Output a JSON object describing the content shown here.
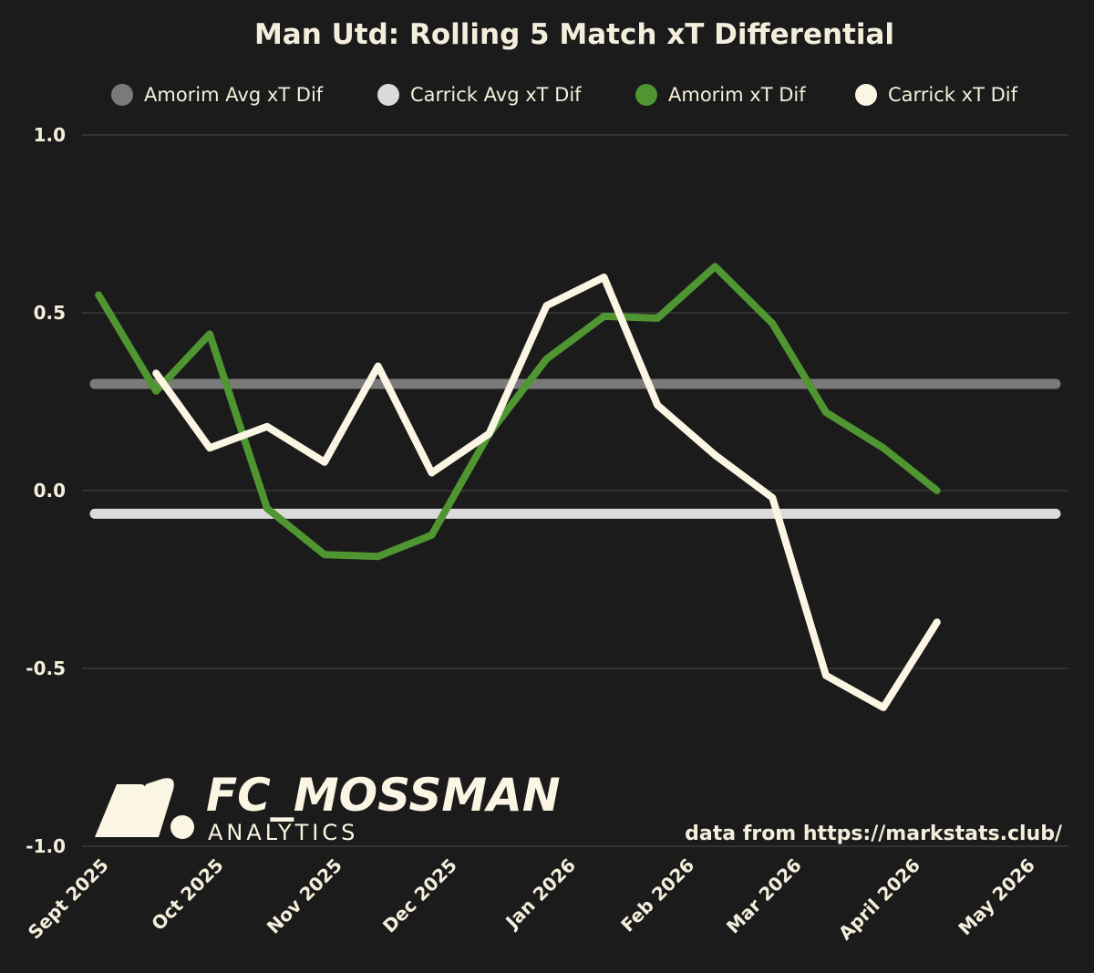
{
  "chart_data": {
    "type": "line",
    "title": "Man Utd: Rolling 5 Match xT Differential",
    "xlabel": "",
    "ylabel": "",
    "ylim": [
      -1.0,
      1.0
    ],
    "yticks": [
      "1.0",
      "0.5",
      "0.0",
      "-0.5",
      "-1.0"
    ],
    "ytick_values": [
      1.0,
      0.5,
      0.0,
      -0.5,
      -1.0
    ],
    "grid": true,
    "legend_position": "top",
    "x_range": [
      "2025-08-31",
      "2026-05-09"
    ],
    "xticks": [
      {
        "label": "Sept 2025",
        "date": "2025-09-01"
      },
      {
        "label": "Oct 2025",
        "date": "2025-10-01"
      },
      {
        "label": "Nov 2025",
        "date": "2025-11-01"
      },
      {
        "label": "Dec 2025",
        "date": "2025-12-01"
      },
      {
        "label": "Jan 2026",
        "date": "2026-01-01"
      },
      {
        "label": "Feb 2026",
        "date": "2026-02-01"
      },
      {
        "label": "Mar 2026",
        "date": "2026-03-01"
      },
      {
        "label": "April 2026",
        "date": "2026-04-01"
      },
      {
        "label": "May 2026",
        "date": "2026-05-01"
      }
    ],
    "series": [
      {
        "name": "Amorim Avg xT Dif",
        "kind": "hline",
        "value": 0.3,
        "color": "#7a7a7a",
        "x_start": "2025-08-31",
        "x_end": "2026-05-09"
      },
      {
        "name": "Carrick Avg xT Dif",
        "kind": "hline",
        "value": -0.065,
        "color": "#dadada",
        "x_start": "2025-08-31",
        "x_end": "2026-05-09"
      },
      {
        "name": "Amorim xT Dif",
        "kind": "line",
        "color": "#4f9531",
        "points": [
          {
            "x": "2025-09-01",
            "y": 0.55
          },
          {
            "x": "2025-09-16",
            "y": 0.28
          },
          {
            "x": "2025-09-30",
            "y": 0.44
          },
          {
            "x": "2025-10-15",
            "y": -0.05
          },
          {
            "x": "2025-10-30",
            "y": -0.18
          },
          {
            "x": "2025-11-13",
            "y": -0.185
          },
          {
            "x": "2025-11-27",
            "y": -0.125
          },
          {
            "x": "2025-12-12",
            "y": 0.16
          },
          {
            "x": "2025-12-27",
            "y": 0.37
          },
          {
            "x": "2026-01-11",
            "y": 0.49
          },
          {
            "x": "2026-01-25",
            "y": 0.485
          },
          {
            "x": "2026-02-09",
            "y": 0.63
          },
          {
            "x": "2026-02-24",
            "y": 0.47
          },
          {
            "x": "2026-03-10",
            "y": 0.22
          },
          {
            "x": "2026-03-25",
            "y": 0.12
          },
          {
            "x": "2026-04-08",
            "y": 0.0
          }
        ]
      },
      {
        "name": "Carrick xT Dif",
        "kind": "line",
        "color": "#fbf6e3",
        "points": [
          {
            "x": "2025-09-16",
            "y": 0.33
          },
          {
            "x": "2025-09-30",
            "y": 0.12
          },
          {
            "x": "2025-10-15",
            "y": 0.18
          },
          {
            "x": "2025-10-30",
            "y": 0.08
          },
          {
            "x": "2025-11-13",
            "y": 0.35
          },
          {
            "x": "2025-11-27",
            "y": 0.05
          },
          {
            "x": "2025-12-12",
            "y": 0.16
          },
          {
            "x": "2025-12-27",
            "y": 0.52
          },
          {
            "x": "2026-01-11",
            "y": 0.6
          },
          {
            "x": "2026-01-25",
            "y": 0.24
          },
          {
            "x": "2026-02-09",
            "y": 0.1
          },
          {
            "x": "2026-02-24",
            "y": -0.02
          },
          {
            "x": "2026-03-10",
            "y": -0.52
          },
          {
            "x": "2026-03-25",
            "y": -0.61
          },
          {
            "x": "2026-04-08",
            "y": -0.37
          }
        ]
      }
    ],
    "source": "data from https://markstats.club/"
  },
  "branding": {
    "name": "FC_MOSSMAN",
    "sub": "ANALYTICS"
  }
}
